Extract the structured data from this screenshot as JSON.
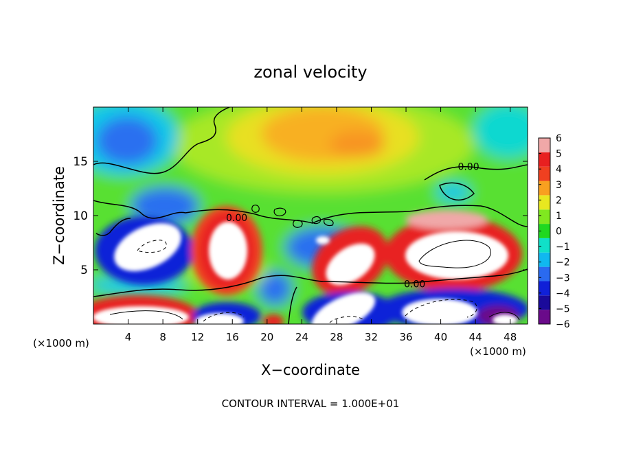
{
  "chart_data": {
    "type": "heatmap",
    "title": "zonal velocity",
    "xlabel": "X−coordinate",
    "ylabel": "Z−coordinate",
    "x_unit_left": "(×1000 m)",
    "x_unit_right": "(×1000 m)",
    "footer": "CONTOUR INTERVAL = 1.000E+01",
    "xlim": [
      0,
      50
    ],
    "ylim": [
      0,
      20
    ],
    "x_ticks": [
      4,
      8,
      12,
      16,
      20,
      24,
      28,
      32,
      36,
      40,
      44,
      48
    ],
    "y_ticks": [
      5,
      10,
      15
    ],
    "x_tick_labels": [
      "4",
      "8",
      "12",
      "16",
      "20",
      "24",
      "28",
      "32",
      "36",
      "40",
      "44",
      "48"
    ],
    "y_tick_labels": [
      "5",
      "10",
      "15"
    ],
    "colorbar": {
      "min": -6,
      "max": 6,
      "tick_labels": [
        "6",
        "5",
        "4",
        "3",
        "2",
        "1",
        "0",
        "−1",
        "−2",
        "−3",
        "−4",
        "−5",
        "−6"
      ],
      "colors": [
        "#6a0a8a",
        "#1a0a9a",
        "#1020d8",
        "#2a6af0",
        "#10b8f0",
        "#10e0c8",
        "#20d820",
        "#80e820",
        "#e8e820",
        "#f8a020",
        "#f04020",
        "#e82020",
        "#f0a8a8"
      ]
    },
    "contour_labels": [
      {
        "text": "0.00",
        "x": 37,
        "y": 3.4
      },
      {
        "text": "0.00",
        "x": 43.2,
        "y": 14.2
      },
      {
        "text": "0.00",
        "x": 16.5,
        "y": 9.5
      }
    ]
  }
}
